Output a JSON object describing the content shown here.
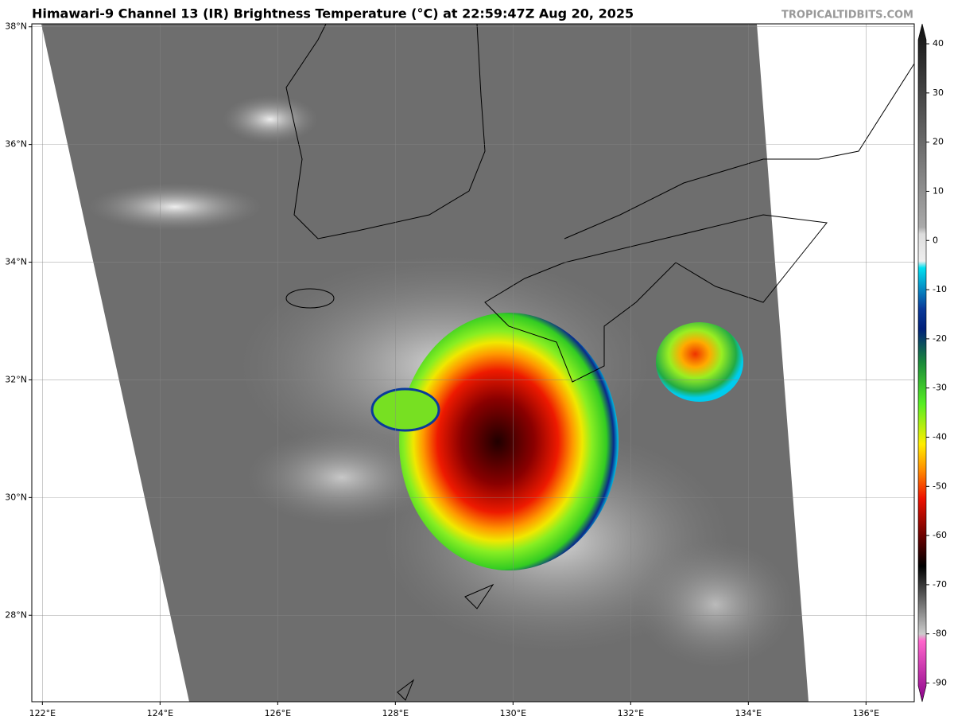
{
  "header": {
    "title": "Himawari-9 Channel 13 (IR) Brightness Temperature (°C) at 22:59:47Z Aug 20, 2025",
    "watermark": "TROPICALTIDBITS.COM"
  },
  "map": {
    "lonlim": [
      121.82,
      136.82
    ],
    "latlim": [
      26.53,
      38.05
    ],
    "lonticks": [
      {
        "value": 122,
        "label": "122°E"
      },
      {
        "value": 124,
        "label": "124°E"
      },
      {
        "value": 126,
        "label": "126°E"
      },
      {
        "value": 128,
        "label": "128°E"
      },
      {
        "value": 130,
        "label": "130°E"
      },
      {
        "value": 132,
        "label": "132°E"
      },
      {
        "value": 134,
        "label": "134°E"
      },
      {
        "value": 136,
        "label": "136°E"
      }
    ],
    "latticks": [
      {
        "value": 28,
        "label": "28°N"
      },
      {
        "value": 30,
        "label": "30°N"
      },
      {
        "value": 32,
        "label": "32°N"
      },
      {
        "value": 34,
        "label": "34°N"
      },
      {
        "value": 36,
        "label": "36°N"
      },
      {
        "value": 38,
        "label": "38°N"
      }
    ],
    "grid": true
  },
  "colorbar": {
    "clim": [
      -93.8,
      44.05
    ],
    "ticks": [
      40,
      30,
      20,
      10,
      0,
      -10,
      -20,
      -30,
      -40,
      -50,
      -60,
      -70,
      -80,
      -90
    ]
  }
}
